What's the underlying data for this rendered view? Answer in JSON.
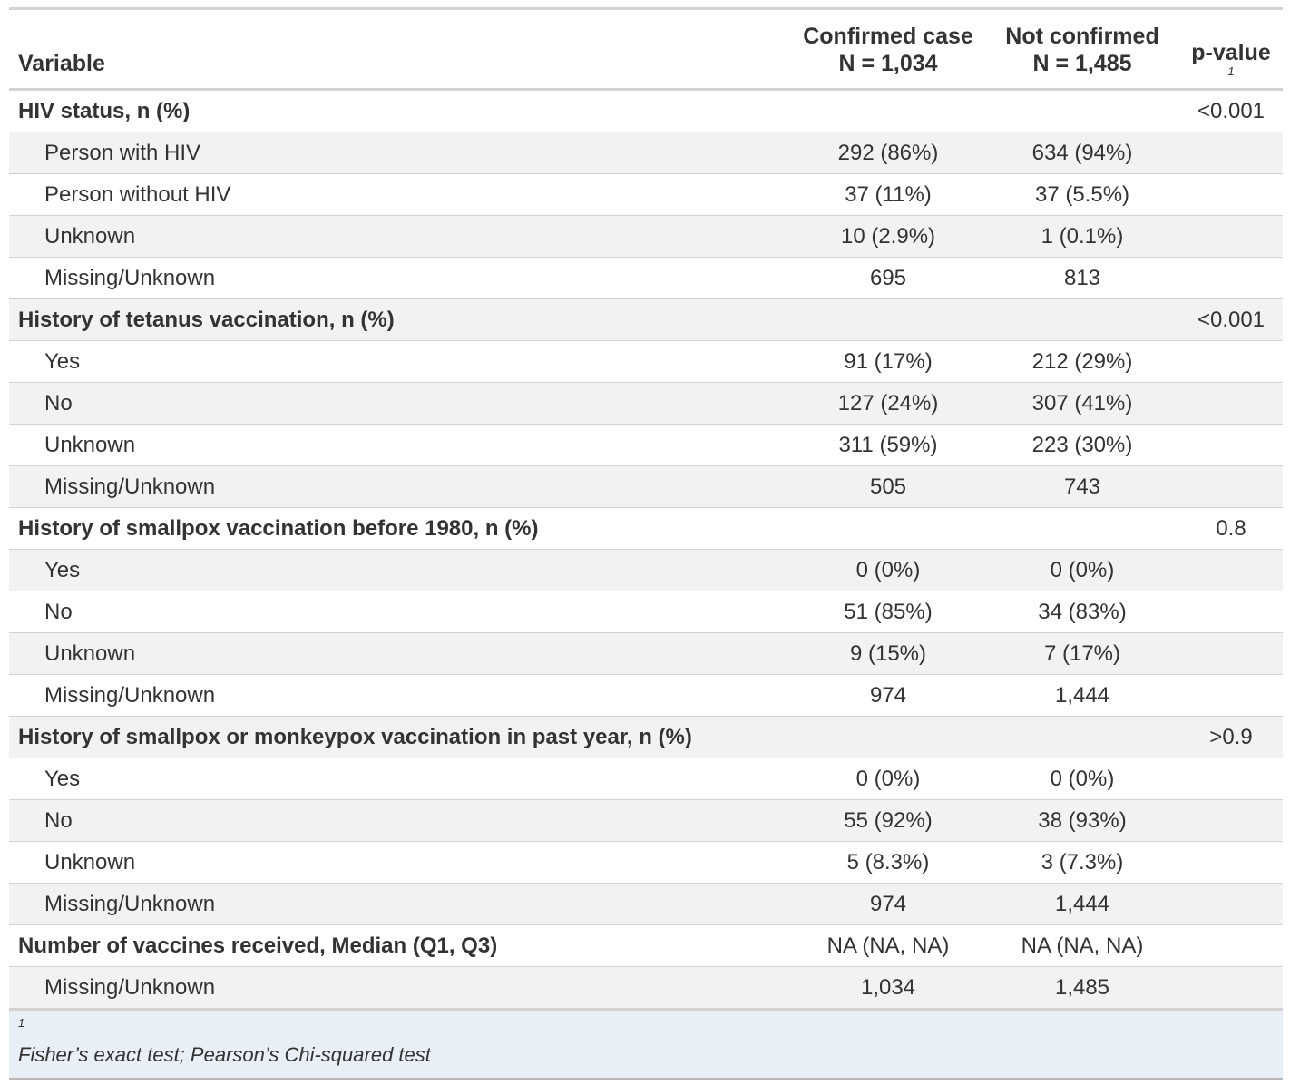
{
  "table": {
    "columns": [
      {
        "label": "Variable",
        "sub": ""
      },
      {
        "label": "Confirmed case",
        "sub": "N = 1,034"
      },
      {
        "label": "Not confirmed",
        "sub": "N = 1,485"
      },
      {
        "label": "p-value",
        "sub": "1"
      }
    ],
    "rows": [
      {
        "label": "HIV status, n (%)",
        "confirmed": "",
        "not_confirmed": "",
        "p": "<0.001"
      },
      {
        "label": "Person with HIV",
        "confirmed": "292 (86%)",
        "not_confirmed": "634 (94%)",
        "p": ""
      },
      {
        "label": "Person without HIV",
        "confirmed": "37 (11%)",
        "not_confirmed": "37 (5.5%)",
        "p": ""
      },
      {
        "label": "Unknown",
        "confirmed": "10 (2.9%)",
        "not_confirmed": "1 (0.1%)",
        "p": ""
      },
      {
        "label": "Missing/Unknown",
        "confirmed": "695",
        "not_confirmed": "813",
        "p": ""
      },
      {
        "label": "History of tetanus vaccination, n (%)",
        "confirmed": "",
        "not_confirmed": "",
        "p": "<0.001"
      },
      {
        "label": "Yes",
        "confirmed": "91 (17%)",
        "not_confirmed": "212 (29%)",
        "p": ""
      },
      {
        "label": "No",
        "confirmed": "127 (24%)",
        "not_confirmed": "307 (41%)",
        "p": ""
      },
      {
        "label": "Unknown",
        "confirmed": "311 (59%)",
        "not_confirmed": "223 (30%)",
        "p": ""
      },
      {
        "label": "Missing/Unknown",
        "confirmed": "505",
        "not_confirmed": "743",
        "p": ""
      },
      {
        "label": "History of smallpox vaccination before 1980, n (%)",
        "confirmed": "",
        "not_confirmed": "",
        "p": "0.8"
      },
      {
        "label": "Yes",
        "confirmed": "0 (0%)",
        "not_confirmed": "0 (0%)",
        "p": ""
      },
      {
        "label": "No",
        "confirmed": "51 (85%)",
        "not_confirmed": "34 (83%)",
        "p": ""
      },
      {
        "label": "Unknown",
        "confirmed": "9 (15%)",
        "not_confirmed": "7 (17%)",
        "p": ""
      },
      {
        "label": "Missing/Unknown",
        "confirmed": "974",
        "not_confirmed": "1,444",
        "p": ""
      },
      {
        "label": "History of smallpox or monkeypox vaccination in past year, n (%)",
        "confirmed": "",
        "not_confirmed": "",
        "p": ">0.9"
      },
      {
        "label": "Yes",
        "confirmed": "0 (0%)",
        "not_confirmed": "0 (0%)",
        "p": ""
      },
      {
        "label": "No",
        "confirmed": "55 (92%)",
        "not_confirmed": "38 (93%)",
        "p": ""
      },
      {
        "label": "Unknown",
        "confirmed": "5 (8.3%)",
        "not_confirmed": "3 (7.3%)",
        "p": ""
      },
      {
        "label": "Missing/Unknown",
        "confirmed": "974",
        "not_confirmed": "1,444",
        "p": ""
      },
      {
        "label": "Number of vaccines received, Median (Q1, Q3)",
        "confirmed": "NA (NA, NA)",
        "not_confirmed": "NA (NA, NA)",
        "p": ""
      },
      {
        "label": "Missing/Unknown",
        "confirmed": "1,034",
        "not_confirmed": "1,485",
        "p": ""
      }
    ]
  },
  "footnote": {
    "mark": "1",
    "text": "Fisher’s exact test; Pearson’s Chi-squared test"
  }
}
